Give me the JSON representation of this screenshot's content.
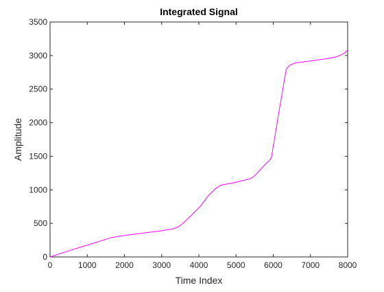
{
  "chart_data": {
    "type": "line",
    "title": "Integrated Signal",
    "xlabel": "Time Index",
    "ylabel": "Amplitude",
    "xlim": [
      0,
      8000
    ],
    "ylim": [
      0,
      3500
    ],
    "xticks": [
      0,
      1000,
      2000,
      3000,
      4000,
      5000,
      6000,
      7000,
      8000
    ],
    "yticks": [
      0,
      500,
      1000,
      1500,
      2000,
      2500,
      3000,
      3500
    ],
    "grid": false,
    "legend": "none",
    "line_color": "#ff00ff",
    "series": [
      {
        "x": [
          0,
          500,
          900,
          1200,
          1650,
          2000,
          2500,
          3000,
          3300,
          3450,
          3550,
          3800,
          4050,
          4250,
          4450,
          4600,
          4900,
          5200,
          5400,
          5500,
          5700,
          5900,
          5950,
          6150,
          6350,
          6450,
          6600,
          7000,
          7400,
          7700,
          7900,
          8000
        ],
        "y": [
          0,
          90,
          160,
          210,
          290,
          320,
          355,
          390,
          420,
          450,
          490,
          620,
          760,
          910,
          1020,
          1070,
          1100,
          1140,
          1170,
          1210,
          1330,
          1440,
          1480,
          2150,
          2800,
          2860,
          2890,
          2920,
          2950,
          2980,
          3030,
          3080
        ]
      }
    ]
  }
}
